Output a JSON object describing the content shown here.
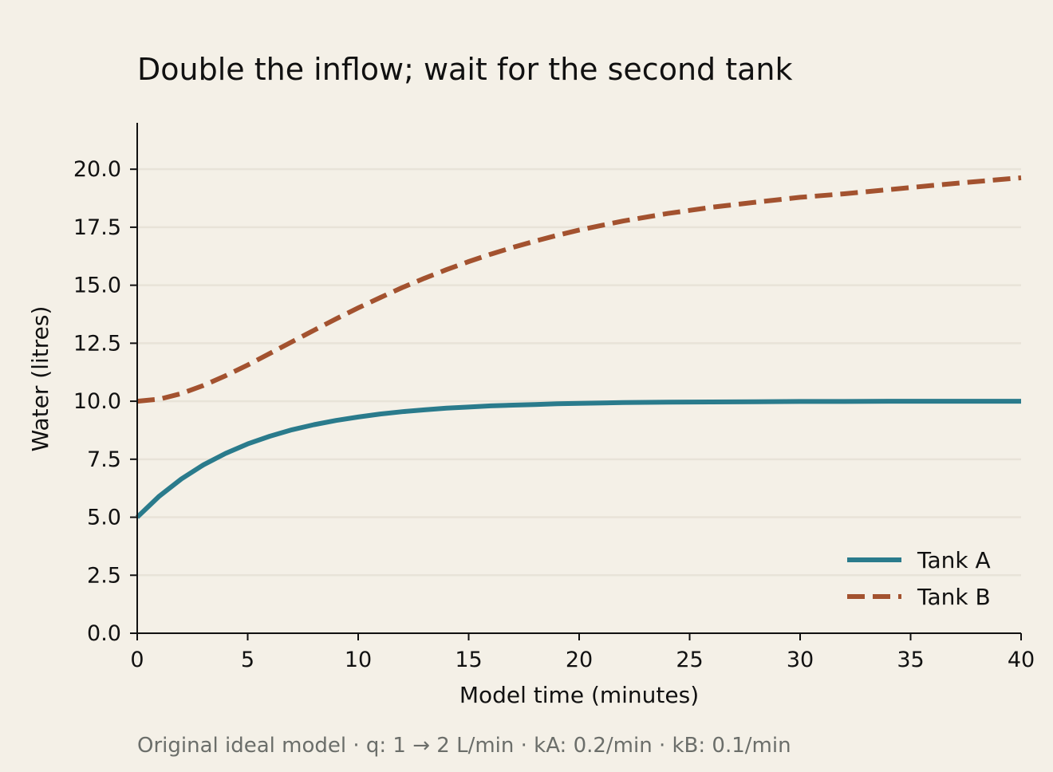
{
  "chart_data": {
    "type": "line",
    "title": "Double the inflow; wait for the second tank",
    "xlabel": "Model time (minutes)",
    "ylabel": "Water (litres)",
    "xlim": [
      0,
      40
    ],
    "ylim": [
      0,
      22
    ],
    "xticks": [
      0,
      5,
      10,
      15,
      20,
      25,
      30,
      35,
      40
    ],
    "xtick_labels": [
      "0",
      "5",
      "10",
      "15",
      "20",
      "25",
      "30",
      "35",
      "40"
    ],
    "yticks": [
      0,
      2.5,
      5,
      7.5,
      10,
      12.5,
      15,
      17.5,
      20
    ],
    "ytick_labels": [
      "0.0",
      "2.5",
      "5.0",
      "7.5",
      "10.0",
      "12.5",
      "15.0",
      "17.5",
      "20.0"
    ],
    "grid": "horizontal",
    "legend_position": "bottom-right",
    "background_color": "#f4f0e7",
    "grid_color": "#e8e3d8",
    "x": [
      0,
      1,
      2,
      3,
      4,
      5,
      6,
      7,
      8,
      9,
      10,
      11,
      12,
      13,
      14,
      15,
      16,
      17,
      18,
      19,
      20,
      22,
      24,
      26,
      28,
      30,
      32,
      34,
      36,
      38,
      40
    ],
    "series": [
      {
        "name": "Tank A",
        "color": "#2a7b8c",
        "style": "solid",
        "values": [
          5.0,
          5.91,
          6.65,
          7.26,
          7.75,
          8.16,
          8.49,
          8.77,
          8.99,
          9.17,
          9.32,
          9.45,
          9.55,
          9.63,
          9.7,
          9.75,
          9.8,
          9.83,
          9.86,
          9.89,
          9.91,
          9.94,
          9.96,
          9.97,
          9.98,
          9.99,
          9.99,
          10.0,
          10.0,
          10.0,
          10.0
        ]
      },
      {
        "name": "Tank B",
        "color": "#a3522f",
        "style": "dashed",
        "values": [
          10.0,
          10.09,
          10.33,
          10.68,
          11.1,
          11.56,
          12.06,
          12.56,
          13.06,
          13.55,
          14.02,
          14.47,
          14.9,
          15.3,
          15.67,
          16.02,
          16.34,
          16.63,
          16.9,
          17.15,
          17.38,
          17.77,
          18.09,
          18.36,
          18.58,
          18.79,
          18.94,
          19.12,
          19.3,
          19.47,
          19.63
        ]
      }
    ],
    "caption": "Original ideal model · q: 1 → 2 L/min · kA: 0.2/min · kB: 0.1/min"
  }
}
